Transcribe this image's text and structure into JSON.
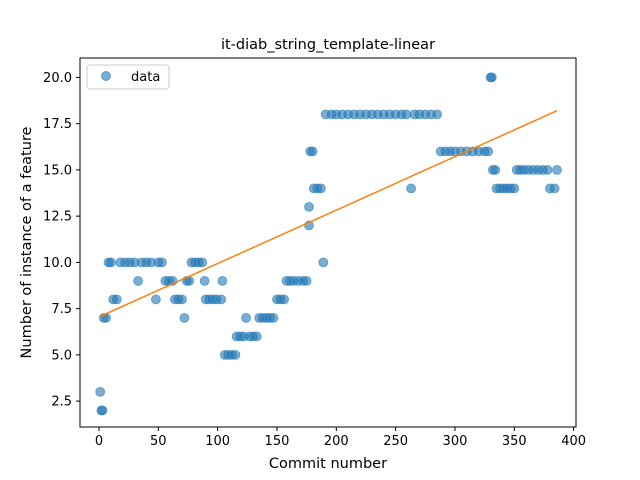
{
  "chart_data": {
    "type": "scatter",
    "title": "it-diab_string_template-linear",
    "xlabel": "Commit number",
    "ylabel": "Number of instance of a feature",
    "xlim": [
      -16,
      402
    ],
    "ylim": [
      1.1,
      21.05
    ],
    "x_ticks": [
      0,
      50,
      100,
      150,
      200,
      250,
      300,
      350,
      400
    ],
    "x_tick_labels": [
      "0",
      "50",
      "100",
      "150",
      "200",
      "250",
      "300",
      "350",
      "400"
    ],
    "y_ticks": [
      2.5,
      5.0,
      7.5,
      10.0,
      12.5,
      15.0,
      17.5,
      20.0
    ],
    "y_tick_labels": [
      "2.5",
      "5.0",
      "7.5",
      "10.0",
      "12.5",
      "15.0",
      "17.5",
      "20.0"
    ],
    "grid": false,
    "legend": {
      "placement": "top-left",
      "entries": [
        "data"
      ]
    },
    "colors": {
      "scatter": "#1f77b4",
      "line": "#ff7f0e"
    },
    "series": [
      {
        "name": "data",
        "kind": "scatter",
        "points": [
          [
            1,
            3
          ],
          [
            2,
            2
          ],
          [
            3,
            2
          ],
          [
            4,
            7
          ],
          [
            6,
            7
          ],
          [
            8,
            10
          ],
          [
            10,
            10
          ],
          [
            12,
            8
          ],
          [
            15,
            8
          ],
          [
            18,
            10
          ],
          [
            22,
            10
          ],
          [
            26,
            10
          ],
          [
            30,
            10
          ],
          [
            33,
            9
          ],
          [
            36,
            10
          ],
          [
            40,
            10
          ],
          [
            44,
            10
          ],
          [
            48,
            8
          ],
          [
            50,
            10
          ],
          [
            53,
            10
          ],
          [
            56,
            9
          ],
          [
            59,
            9
          ],
          [
            62,
            9
          ],
          [
            64,
            8
          ],
          [
            67,
            8
          ],
          [
            70,
            8
          ],
          [
            72,
            7
          ],
          [
            74,
            9
          ],
          [
            76,
            9
          ],
          [
            78,
            10
          ],
          [
            81,
            10
          ],
          [
            84,
            10
          ],
          [
            87,
            10
          ],
          [
            89,
            9
          ],
          [
            90,
            8
          ],
          [
            93,
            8
          ],
          [
            96,
            8
          ],
          [
            99,
            8
          ],
          [
            103,
            8
          ],
          [
            104,
            9
          ],
          [
            106,
            5
          ],
          [
            109,
            5
          ],
          [
            112,
            5
          ],
          [
            115,
            5
          ],
          [
            116,
            6
          ],
          [
            119,
            6
          ],
          [
            122,
            6
          ],
          [
            124,
            7
          ],
          [
            127,
            6
          ],
          [
            130,
            6
          ],
          [
            133,
            6
          ],
          [
            135,
            7
          ],
          [
            138,
            7
          ],
          [
            141,
            7
          ],
          [
            144,
            7
          ],
          [
            147,
            7
          ],
          [
            150,
            8
          ],
          [
            153,
            8
          ],
          [
            156,
            8
          ],
          [
            158,
            9
          ],
          [
            161,
            9
          ],
          [
            164,
            9
          ],
          [
            168,
            9
          ],
          [
            172,
            9
          ],
          [
            175,
            9
          ],
          [
            177,
            12
          ],
          [
            177,
            13
          ],
          [
            178,
            16
          ],
          [
            180,
            16
          ],
          [
            181,
            14
          ],
          [
            184,
            14
          ],
          [
            187,
            14
          ],
          [
            189,
            10
          ],
          [
            191,
            18
          ],
          [
            196,
            18
          ],
          [
            200,
            18
          ],
          [
            205,
            18
          ],
          [
            210,
            18
          ],
          [
            215,
            18
          ],
          [
            220,
            18
          ],
          [
            225,
            18
          ],
          [
            230,
            18
          ],
          [
            235,
            18
          ],
          [
            240,
            18
          ],
          [
            245,
            18
          ],
          [
            250,
            18
          ],
          [
            255,
            18
          ],
          [
            259,
            18
          ],
          [
            263,
            14
          ],
          [
            266,
            18
          ],
          [
            270,
            18
          ],
          [
            275,
            18
          ],
          [
            280,
            18
          ],
          [
            285,
            18
          ],
          [
            288,
            16
          ],
          [
            292,
            16
          ],
          [
            296,
            16
          ],
          [
            300,
            16
          ],
          [
            305,
            16
          ],
          [
            310,
            16
          ],
          [
            315,
            16
          ],
          [
            320,
            16
          ],
          [
            325,
            16
          ],
          [
            328,
            16
          ],
          [
            330,
            20
          ],
          [
            331,
            20
          ],
          [
            332,
            15
          ],
          [
            334,
            15
          ],
          [
            335,
            14
          ],
          [
            338,
            14
          ],
          [
            341,
            14
          ],
          [
            344,
            14
          ],
          [
            347,
            14
          ],
          [
            350,
            14
          ],
          [
            352,
            15
          ],
          [
            355,
            15
          ],
          [
            358,
            15
          ],
          [
            362,
            15
          ],
          [
            366,
            15
          ],
          [
            370,
            15
          ],
          [
            374,
            15
          ],
          [
            378,
            15
          ],
          [
            380,
            14
          ],
          [
            384,
            14
          ],
          [
            386,
            15
          ]
        ]
      },
      {
        "kind": "line",
        "x": [
          0,
          386
        ],
        "y": [
          7.05,
          18.2
        ]
      }
    ]
  }
}
